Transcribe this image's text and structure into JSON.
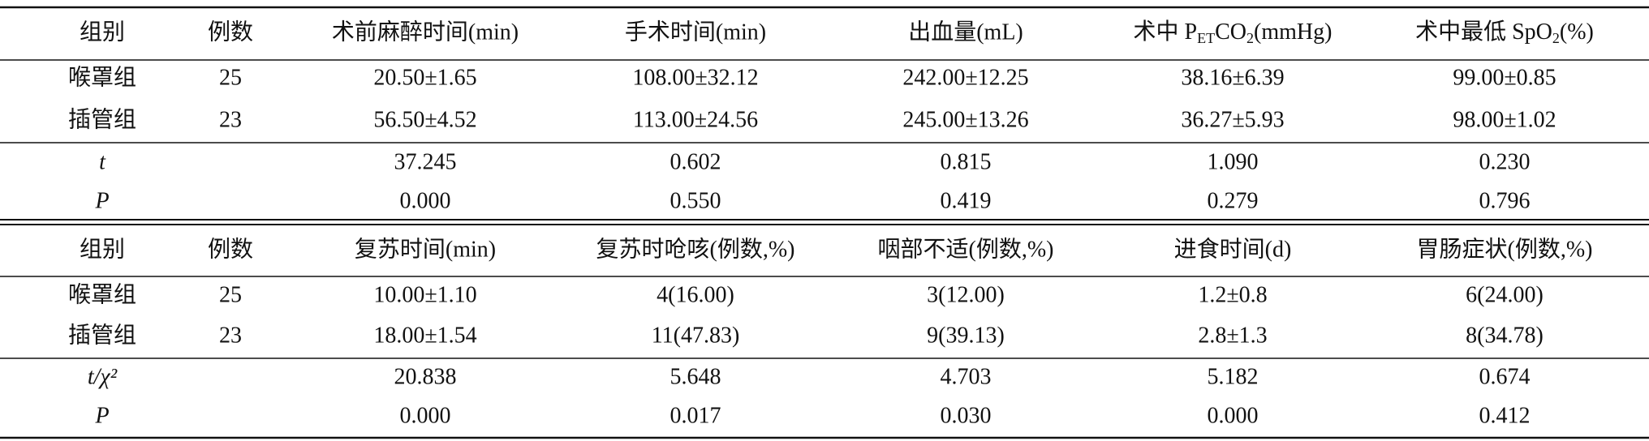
{
  "table1": {
    "header": [
      "组别",
      "例数",
      "术前麻醉时间(min)",
      "手术时间(min)",
      "出血量(mL)",
      [
        "术中 P",
        "ET",
        "CO",
        "2",
        "(mmHg)"
      ],
      [
        "术中最低 SpO",
        "2",
        "(%)"
      ]
    ],
    "groups": [
      [
        "喉罩组",
        "25",
        "20.50±1.65",
        "108.00±32.12",
        "242.00±12.25",
        "38.16±6.39",
        "99.00±0.85"
      ],
      [
        "插管组",
        "23",
        "56.50±4.52",
        "113.00±24.56",
        "245.00±13.26",
        "36.27±5.93",
        "98.00±1.02"
      ]
    ],
    "stats": [
      {
        "label": "t",
        "values": [
          "37.245",
          "0.602",
          "0.815",
          "1.090",
          "0.230"
        ]
      },
      {
        "label": "P",
        "values": [
          "0.000",
          "0.550",
          "0.419",
          "0.279",
          "0.796"
        ]
      }
    ]
  },
  "table2": {
    "header": [
      "组别",
      "例数",
      "复苏时间(min)",
      "复苏时呛咳(例数,%)",
      "咽部不适(例数,%)",
      "进食时间(d)",
      "胃肠症状(例数,%)"
    ],
    "groups": [
      [
        "喉罩组",
        "25",
        "10.00±1.10",
        "4(16.00)",
        "3(12.00)",
        "1.2±0.8",
        "6(24.00)"
      ],
      [
        "插管组",
        "23",
        "18.00±1.54",
        "11(47.83)",
        "9(39.13)",
        "2.8±1.3",
        "8(34.78)"
      ]
    ],
    "stats": [
      {
        "label": "t/χ²",
        "values": [
          "20.838",
          "5.648",
          "4.703",
          "5.182",
          "0.674"
        ]
      },
      {
        "label": "P",
        "values": [
          "0.000",
          "0.017",
          "0.030",
          "0.000",
          "0.412"
        ]
      }
    ]
  }
}
